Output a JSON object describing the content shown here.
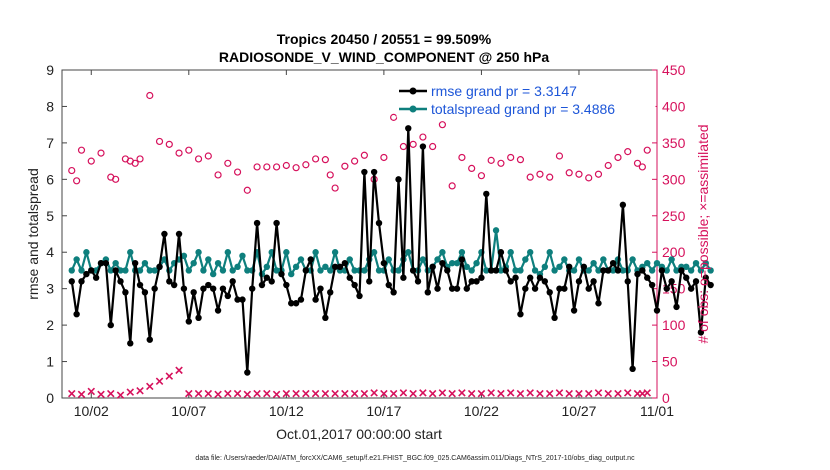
{
  "colors": {
    "rmse": "#000000",
    "totalspread": "#0e7f7d",
    "obs": "#d6115c",
    "legend_text": "#1d56d8",
    "axis_right": "#d6115c"
  },
  "chart_data": {
    "type": "line",
    "title": "Tropics 20450 / 20551 = 99.509%",
    "subtitle": "RADIOSONDE_V_WIND_COMPONENT @ 250 hPa",
    "xlabel": "Oct.01,2017 00:00:00 start",
    "ylabel": "rmse and totalspread",
    "ylabel_right": "# of obs: o=possible; ×=assimilated",
    "xlim": [
      0.5,
      31.0
    ],
    "ylim": [
      0,
      9
    ],
    "ylim_right": [
      0,
      450
    ],
    "x_ticks": [
      2,
      7,
      12,
      17,
      22,
      27,
      32
    ],
    "x_tick_labels": [
      "10/02",
      "10/07",
      "10/12",
      "10/17",
      "10/22",
      "10/27",
      "11/01"
    ],
    "y_ticks": [
      0,
      1,
      2,
      3,
      4,
      5,
      6,
      7,
      8,
      9
    ],
    "y_tick_labels": [
      "0",
      "1",
      "2",
      "3",
      "4",
      "5",
      "6",
      "7",
      "8",
      "9"
    ],
    "y_ticks_right": [
      0,
      50,
      100,
      150,
      200,
      250,
      300,
      350,
      400,
      450
    ],
    "y_tick_labels_right": [
      "0",
      "50",
      "100",
      "150",
      "200",
      "250",
      "300",
      "350",
      "400",
      "450"
    ],
    "legend": [
      "rmse grand pr = 3.3147",
      "totalspread grand pr = 3.4886"
    ],
    "legend_location": "top-right",
    "x_start": 1.0,
    "x_step": 0.25,
    "series": [
      {
        "name": "rmse",
        "marker": "filled-circle",
        "values": [
          3.2,
          2.3,
          3.2,
          3.4,
          3.5,
          3.3,
          3.7,
          3.7,
          2.0,
          3.5,
          3.2,
          2.9,
          1.5,
          3.7,
          3.1,
          2.9,
          1.6,
          3.0,
          3.6,
          4.5,
          3.2,
          3.1,
          4.5,
          3.0,
          2.1,
          2.9,
          2.2,
          3.0,
          3.1,
          3.0,
          2.4,
          3.0,
          2.8,
          3.2,
          2.7,
          2.7,
          0.7,
          3.0,
          4.8,
          3.1,
          3.3,
          3.2,
          4.8,
          3.4,
          3.1,
          2.6,
          2.6,
          2.7,
          3.5,
          3.8,
          2.7,
          3.0,
          2.2,
          2.9,
          3.6,
          3.6,
          3.7,
          3.3,
          3.1,
          2.8,
          6.2,
          3.2,
          6.2,
          4.8,
          3.7,
          3.1,
          2.9,
          6.0,
          3.3,
          7.4,
          3.5,
          3.2,
          6.9,
          2.9,
          3.6,
          3.0,
          3.7,
          3.5,
          3.0,
          3.0,
          3.8,
          3.0,
          3.2,
          3.2,
          3.3,
          5.6,
          3.5,
          3.5,
          4.0,
          3.5,
          3.2,
          3.3,
          2.3,
          3.0,
          3.3,
          3.0,
          3.3,
          3.2,
          2.9,
          2.2,
          3.0,
          3.0,
          3.6,
          2.4,
          3.2,
          3.6,
          3.0,
          3.2,
          2.6,
          3.5,
          3.5,
          3.7,
          3.5,
          5.3,
          3.2,
          0.8,
          3.4,
          3.5,
          3.3,
          3.1,
          2.4,
          3.5,
          3.0,
          3.2,
          2.5,
          3.5,
          3.3,
          3.0,
          3.2,
          1.8,
          3.3,
          3.1
        ]
      },
      {
        "name": "totalspread",
        "marker": "filled-circle",
        "values": [
          3.5,
          3.8,
          3.5,
          4.0,
          3.5,
          3.5,
          3.7,
          3.8,
          3.5,
          3.7,
          3.5,
          3.5,
          4.0,
          3.5,
          3.5,
          3.7,
          3.5,
          3.5,
          3.6,
          3.8,
          3.5,
          3.7,
          3.8,
          3.9,
          3.5,
          3.7,
          4.0,
          3.5,
          3.8,
          3.4,
          3.7,
          3.5,
          4.0,
          3.5,
          3.6,
          3.9,
          3.5,
          3.5,
          4.0,
          3.4,
          3.6,
          4.0,
          3.5,
          3.5,
          4.0,
          3.4,
          3.6,
          3.8,
          3.5,
          3.5,
          4.0,
          3.5,
          3.6,
          3.5,
          4.0,
          3.5,
          3.5,
          3.8,
          3.5,
          3.5,
          3.5,
          3.8,
          4.0,
          3.5,
          3.5,
          3.8,
          3.5,
          3.5,
          3.8,
          4.0,
          3.5,
          3.5,
          3.8,
          3.5,
          3.6,
          3.8,
          4.0,
          3.6,
          3.7,
          3.7,
          4.0,
          3.6,
          3.5,
          3.7,
          4.0,
          3.5,
          3.5,
          4.6,
          3.5,
          3.6,
          4.0,
          3.5,
          3.5,
          3.8,
          4.0,
          3.5,
          3.4,
          3.6,
          4.0,
          3.5,
          3.6,
          3.8,
          3.5,
          3.5,
          3.8,
          3.5,
          3.5,
          3.7,
          3.5,
          3.8,
          3.5,
          3.5,
          3.8,
          3.5,
          3.5,
          3.8,
          3.5,
          3.6,
          3.7,
          3.5,
          3.7,
          3.6,
          3.5,
          3.8,
          3.5,
          3.6,
          3.6,
          3.5,
          3.7,
          3.5,
          3.7,
          3.5
        ]
      }
    ],
    "obs_possible": {
      "name": "# of obs possible",
      "marker": "o",
      "points": [
        {
          "x": 1.0,
          "y": 312
        },
        {
          "x": 1.25,
          "y": 298
        },
        {
          "x": 1.5,
          "y": 340
        },
        {
          "x": 2.0,
          "y": 325
        },
        {
          "x": 2.5,
          "y": 336
        },
        {
          "x": 3.0,
          "y": 303
        },
        {
          "x": 3.25,
          "y": 300
        },
        {
          "x": 3.75,
          "y": 328
        },
        {
          "x": 4.0,
          "y": 325
        },
        {
          "x": 4.25,
          "y": 322
        },
        {
          "x": 4.5,
          "y": 328
        },
        {
          "x": 5.0,
          "y": 415
        },
        {
          "x": 5.5,
          "y": 352
        },
        {
          "x": 6.0,
          "y": 348
        },
        {
          "x": 6.5,
          "y": 336
        },
        {
          "x": 7.0,
          "y": 340
        },
        {
          "x": 7.5,
          "y": 328
        },
        {
          "x": 8.0,
          "y": 332
        },
        {
          "x": 8.5,
          "y": 306
        },
        {
          "x": 9.0,
          "y": 322
        },
        {
          "x": 9.5,
          "y": 310
        },
        {
          "x": 10.0,
          "y": 285
        },
        {
          "x": 10.5,
          "y": 317
        },
        {
          "x": 11.0,
          "y": 317
        },
        {
          "x": 11.5,
          "y": 317
        },
        {
          "x": 12.0,
          "y": 319
        },
        {
          "x": 12.5,
          "y": 316
        },
        {
          "x": 13.0,
          "y": 320
        },
        {
          "x": 13.5,
          "y": 328
        },
        {
          "x": 14.0,
          "y": 327
        },
        {
          "x": 14.25,
          "y": 306
        },
        {
          "x": 14.5,
          "y": 288
        },
        {
          "x": 15.0,
          "y": 318
        },
        {
          "x": 15.5,
          "y": 325
        },
        {
          "x": 16.0,
          "y": 333
        },
        {
          "x": 16.5,
          "y": 300
        },
        {
          "x": 17.0,
          "y": 330
        },
        {
          "x": 17.5,
          "y": 385
        },
        {
          "x": 18.0,
          "y": 345
        },
        {
          "x": 18.5,
          "y": 348
        },
        {
          "x": 19.0,
          "y": 358
        },
        {
          "x": 19.5,
          "y": 345
        },
        {
          "x": 20.0,
          "y": 375
        },
        {
          "x": 20.5,
          "y": 291
        },
        {
          "x": 21.0,
          "y": 330
        },
        {
          "x": 21.5,
          "y": 315
        },
        {
          "x": 22.0,
          "y": 305
        },
        {
          "x": 22.5,
          "y": 326
        },
        {
          "x": 23.0,
          "y": 322
        },
        {
          "x": 23.5,
          "y": 330
        },
        {
          "x": 24.0,
          "y": 327
        },
        {
          "x": 24.5,
          "y": 303
        },
        {
          "x": 25.0,
          "y": 307
        },
        {
          "x": 25.5,
          "y": 303
        },
        {
          "x": 26.0,
          "y": 332
        },
        {
          "x": 26.5,
          "y": 309
        },
        {
          "x": 27.0,
          "y": 307
        },
        {
          "x": 27.5,
          "y": 302
        },
        {
          "x": 28.0,
          "y": 307
        },
        {
          "x": 28.5,
          "y": 319
        },
        {
          "x": 29.0,
          "y": 330
        },
        {
          "x": 29.5,
          "y": 338
        },
        {
          "x": 30.0,
          "y": 322
        },
        {
          "x": 30.25,
          "y": 317
        },
        {
          "x": 30.5,
          "y": 340
        }
      ]
    },
    "obs_assimilated": {
      "name": "# of obs assimilated",
      "marker": "x",
      "points": [
        {
          "x": 1.0,
          "y": 6
        },
        {
          "x": 1.5,
          "y": 5
        },
        {
          "x": 2.0,
          "y": 9
        },
        {
          "x": 2.5,
          "y": 5
        },
        {
          "x": 3.0,
          "y": 6
        },
        {
          "x": 3.5,
          "y": 4
        },
        {
          "x": 4.0,
          "y": 8
        },
        {
          "x": 4.5,
          "y": 10
        },
        {
          "x": 5.0,
          "y": 16
        },
        {
          "x": 5.5,
          "y": 23
        },
        {
          "x": 6.0,
          "y": 30
        },
        {
          "x": 6.5,
          "y": 38
        },
        {
          "x": 7.0,
          "y": 6
        },
        {
          "x": 7.5,
          "y": 6
        },
        {
          "x": 8.0,
          "y": 6
        },
        {
          "x": 8.5,
          "y": 5
        },
        {
          "x": 9.0,
          "y": 6
        },
        {
          "x": 9.5,
          "y": 6
        },
        {
          "x": 10.0,
          "y": 5
        },
        {
          "x": 10.5,
          "y": 6
        },
        {
          "x": 11.0,
          "y": 6
        },
        {
          "x": 11.5,
          "y": 5
        },
        {
          "x": 12.0,
          "y": 6
        },
        {
          "x": 12.5,
          "y": 6
        },
        {
          "x": 13.0,
          "y": 6
        },
        {
          "x": 13.5,
          "y": 6
        },
        {
          "x": 14.0,
          "y": 6
        },
        {
          "x": 14.5,
          "y": 6
        },
        {
          "x": 15.0,
          "y": 6
        },
        {
          "x": 15.5,
          "y": 6
        },
        {
          "x": 16.0,
          "y": 6
        },
        {
          "x": 16.5,
          "y": 7
        },
        {
          "x": 17.0,
          "y": 6
        },
        {
          "x": 17.5,
          "y": 6
        },
        {
          "x": 18.0,
          "y": 7
        },
        {
          "x": 18.5,
          "y": 6
        },
        {
          "x": 19.0,
          "y": 7
        },
        {
          "x": 19.5,
          "y": 6
        },
        {
          "x": 20.0,
          "y": 7
        },
        {
          "x": 20.5,
          "y": 6
        },
        {
          "x": 21.0,
          "y": 7
        },
        {
          "x": 21.5,
          "y": 6
        },
        {
          "x": 22.0,
          "y": 6
        },
        {
          "x": 22.5,
          "y": 7
        },
        {
          "x": 23.0,
          "y": 6
        },
        {
          "x": 23.5,
          "y": 7
        },
        {
          "x": 24.0,
          "y": 6
        },
        {
          "x": 24.5,
          "y": 7
        },
        {
          "x": 25.0,
          "y": 6
        },
        {
          "x": 25.5,
          "y": 6
        },
        {
          "x": 26.0,
          "y": 7
        },
        {
          "x": 26.5,
          "y": 6
        },
        {
          "x": 27.0,
          "y": 6
        },
        {
          "x": 27.5,
          "y": 6
        },
        {
          "x": 28.0,
          "y": 7
        },
        {
          "x": 28.5,
          "y": 6
        },
        {
          "x": 29.0,
          "y": 6
        },
        {
          "x": 29.5,
          "y": 7
        },
        {
          "x": 30.0,
          "y": 6
        },
        {
          "x": 30.25,
          "y": 6
        },
        {
          "x": 30.5,
          "y": 7
        }
      ]
    },
    "footer": "data file: /Users/raeder/DAI/ATM_forcXX/CAM6_setup/f.e21.FHIST_BGC.f09_025.CAM6assim.011/Diags_NTrS_2017-10/obs_diag_output.nc"
  }
}
